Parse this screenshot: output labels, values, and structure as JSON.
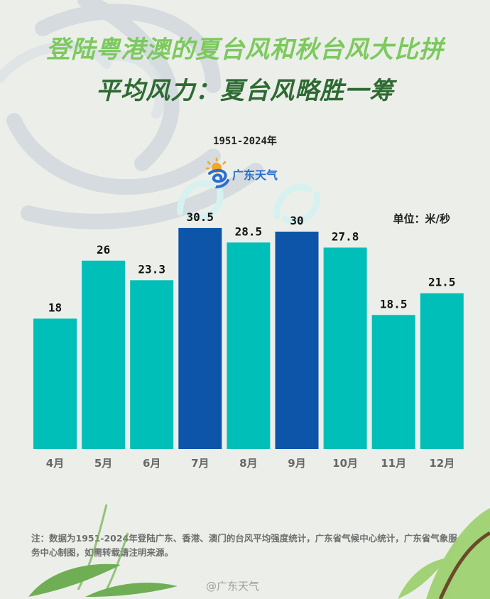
{
  "header": {
    "title": "登陆粤港澳的夏台风和秋台风大比拼",
    "subtitle": "平均风力：夏台风略胜一筹",
    "period": "1951-2024年",
    "logo_text": "广东天气",
    "unit": "单位：米/秒"
  },
  "colors": {
    "teal": "#00bfb8",
    "blue": "#0c55a9",
    "title_green": "#7cc95e",
    "subtitle_green": "#2e6b33"
  },
  "chart_data": {
    "type": "bar",
    "categories": [
      "4月",
      "5月",
      "6月",
      "7月",
      "8月",
      "9月",
      "10月",
      "11月",
      "12月"
    ],
    "values": [
      18,
      26,
      23.3,
      30.5,
      28.5,
      30,
      27.8,
      18.5,
      21.5
    ],
    "value_labels": [
      "18",
      "26",
      "23.3",
      "30.5",
      "28.5",
      "30",
      "27.8",
      "18.5",
      "21.5"
    ],
    "highlight": [
      false,
      false,
      false,
      true,
      false,
      true,
      false,
      false,
      false
    ],
    "ylim": [
      0,
      35
    ]
  },
  "footer": {
    "note": "注：数据为1951-2024年登陆广东、香港、澳门的台风平均强度统计，广东省气候中心统计，广东省气象服务中心制图，如需转载请注明来源。",
    "watermark": "@广东天气"
  }
}
